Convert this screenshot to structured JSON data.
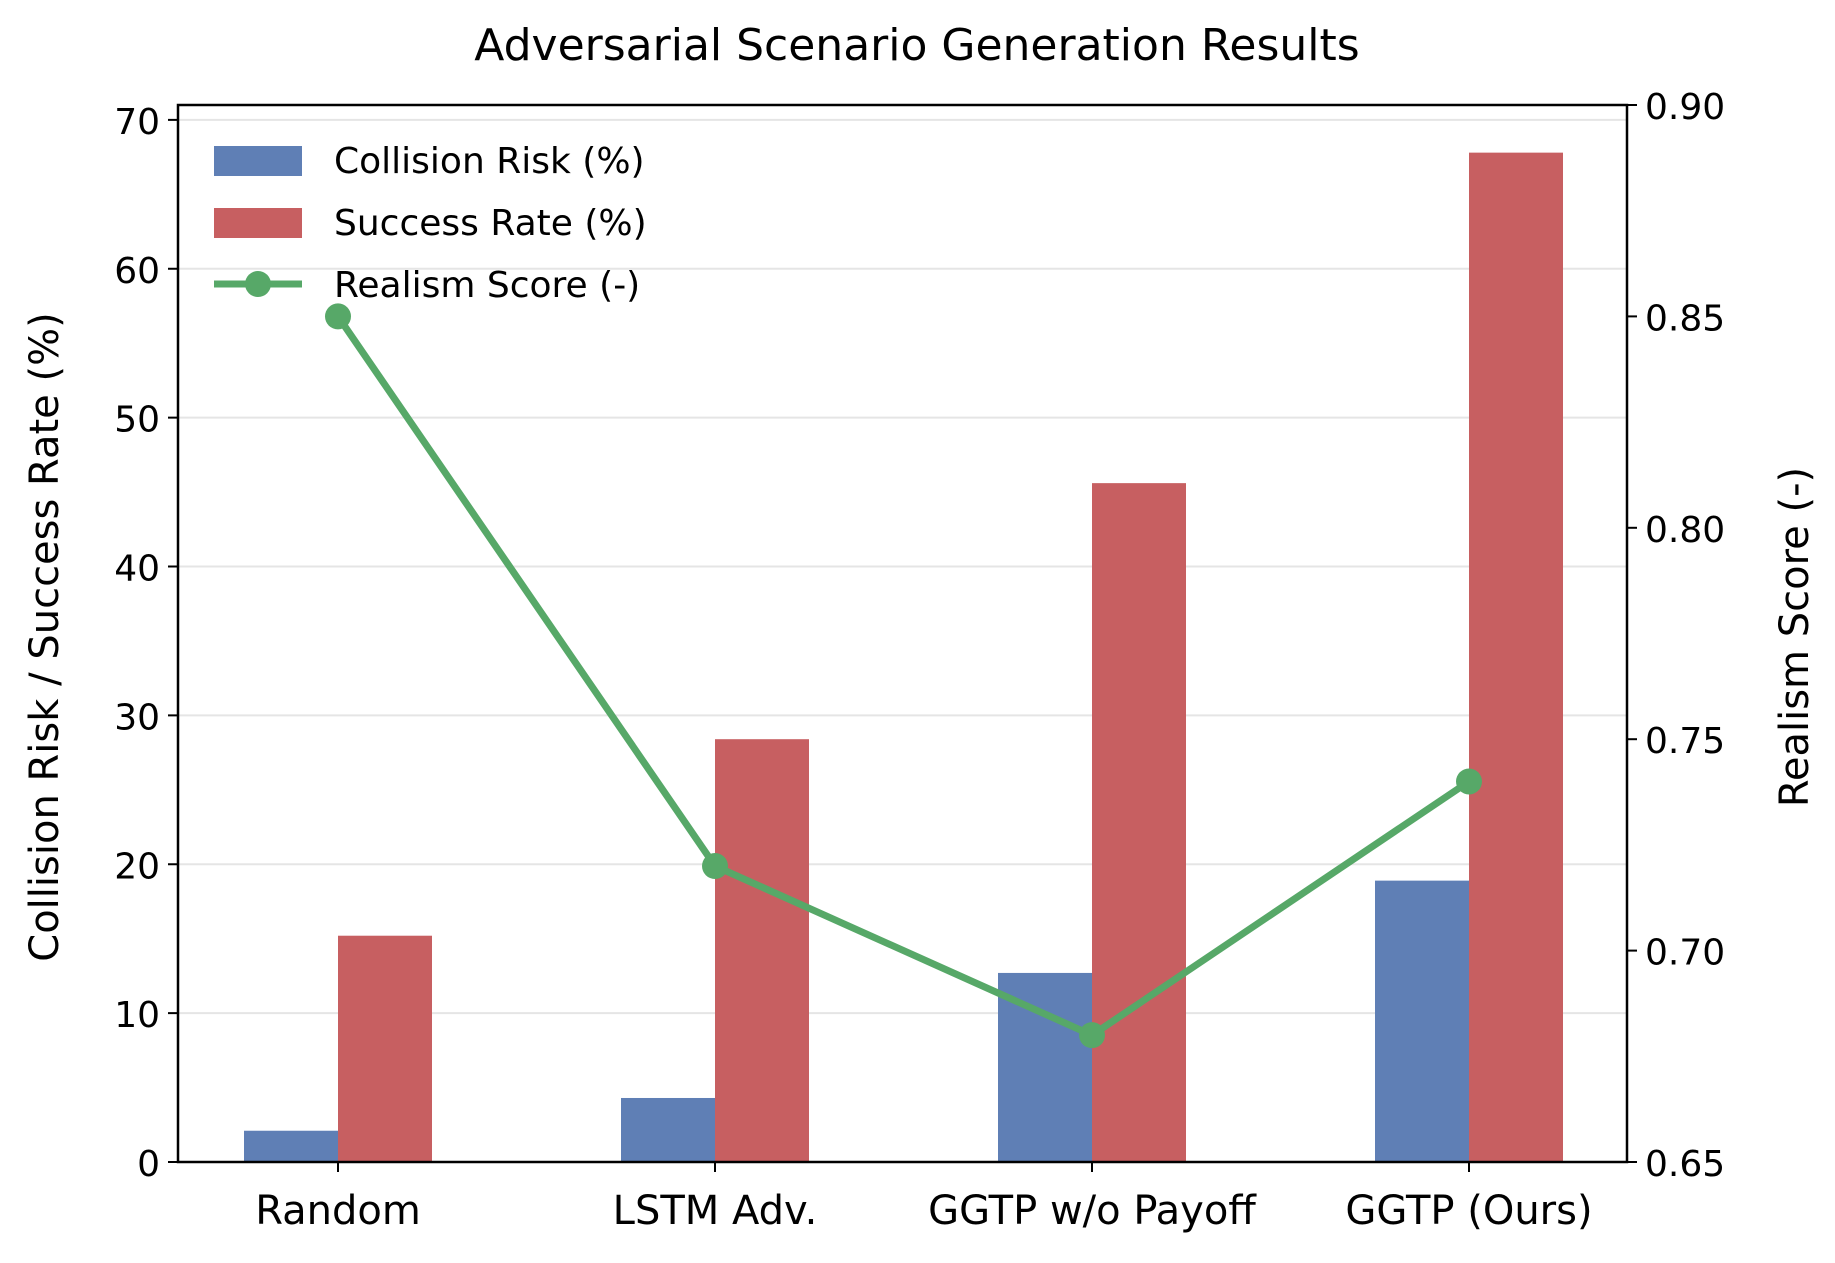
{
  "chart_data": {
    "type": "bar",
    "title": "Adversarial Scenario Generation Results",
    "categories": [
      "Random",
      "LSTM Adv.",
      "GGTP w/o Payoff",
      "GGTP (Ours)"
    ],
    "ylabel": "Collision Risk / Success Rate (%)",
    "ylabel_right": "Realism Score (-)",
    "ylim": [
      0,
      71
    ],
    "ylim_right": [
      0.65,
      0.9
    ],
    "yticks": [
      "0",
      "10",
      "20",
      "30",
      "40",
      "50",
      "60",
      "70"
    ],
    "yticks_right": [
      "0.65",
      "0.70",
      "0.75",
      "0.80",
      "0.85",
      "0.90"
    ],
    "grid": "horizontal",
    "legend_position": "top-left",
    "series": [
      {
        "name": "Collision Risk (%)",
        "type": "bar",
        "axis": "left",
        "color": "#5f7fb5",
        "values": [
          2.1,
          4.3,
          12.7,
          18.9
        ]
      },
      {
        "name": "Success Rate (%)",
        "type": "bar",
        "axis": "left",
        "color": "#c75f61",
        "values": [
          15.2,
          28.4,
          45.6,
          67.8
        ]
      },
      {
        "name": "Realism Score (-)",
        "type": "line",
        "axis": "right",
        "color": "#57a868",
        "values": [
          0.85,
          0.72,
          0.68,
          0.74
        ]
      }
    ]
  }
}
